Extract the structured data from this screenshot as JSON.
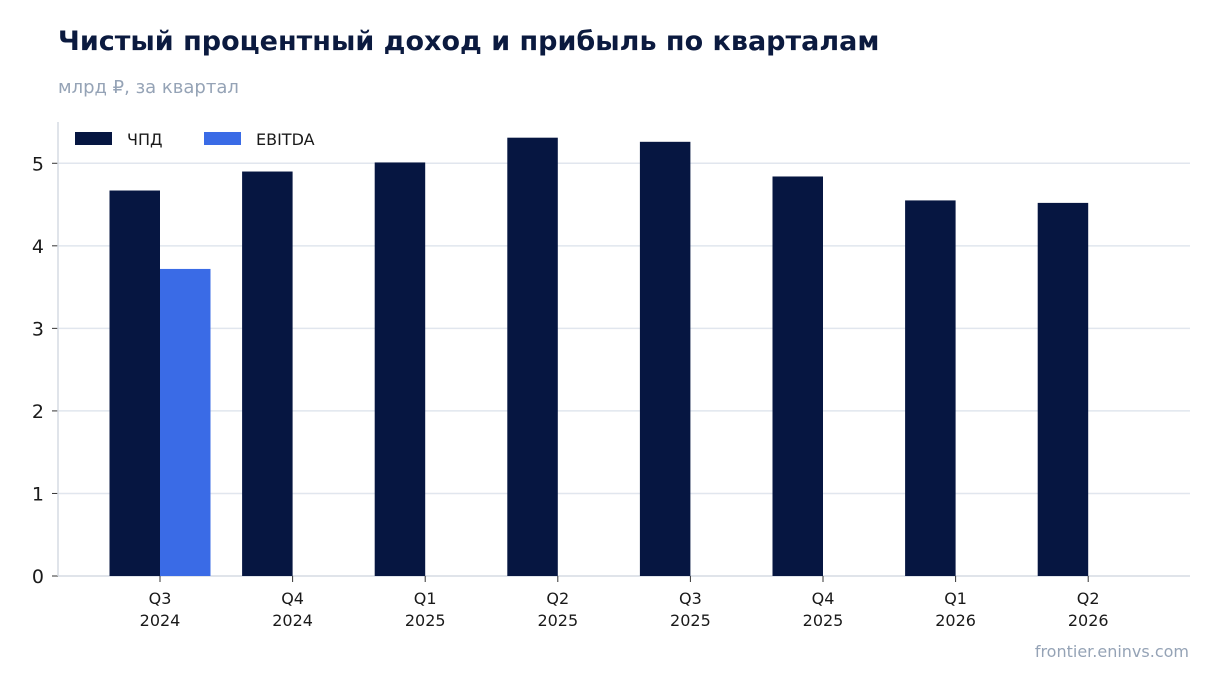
{
  "title": "Чистый процентный доход и прибыль по кварталам",
  "subtitle": "млрд ₽, за квартал",
  "source": "frontier.eninvs.com",
  "colors": {
    "series_1": "#061641",
    "series_2": "#3a6be6",
    "grid": "#e1e6ee",
    "axis": "#d6dbe3"
  },
  "chart_data": {
    "type": "bar",
    "categories": [
      [
        "Q3",
        "2024"
      ],
      [
        "Q4",
        "2024"
      ],
      [
        "Q1",
        "2025"
      ],
      [
        "Q2",
        "2025"
      ],
      [
        "Q3",
        "2025"
      ],
      [
        "Q4",
        "2025"
      ],
      [
        "Q1",
        "2026"
      ],
      [
        "Q2",
        "2026"
      ]
    ],
    "series": [
      {
        "name": "ЧПД",
        "values": [
          4.67,
          4.9,
          5.01,
          5.31,
          5.26,
          4.84,
          4.55,
          4.52
        ]
      },
      {
        "name": "EBITDA",
        "values": [
          3.72,
          null,
          null,
          null,
          null,
          null,
          null,
          null
        ]
      }
    ],
    "ylim": [
      0,
      5.5
    ],
    "yticks": [
      0,
      1,
      2,
      3,
      4,
      5
    ],
    "grid": true,
    "legend_position": "top-left"
  }
}
